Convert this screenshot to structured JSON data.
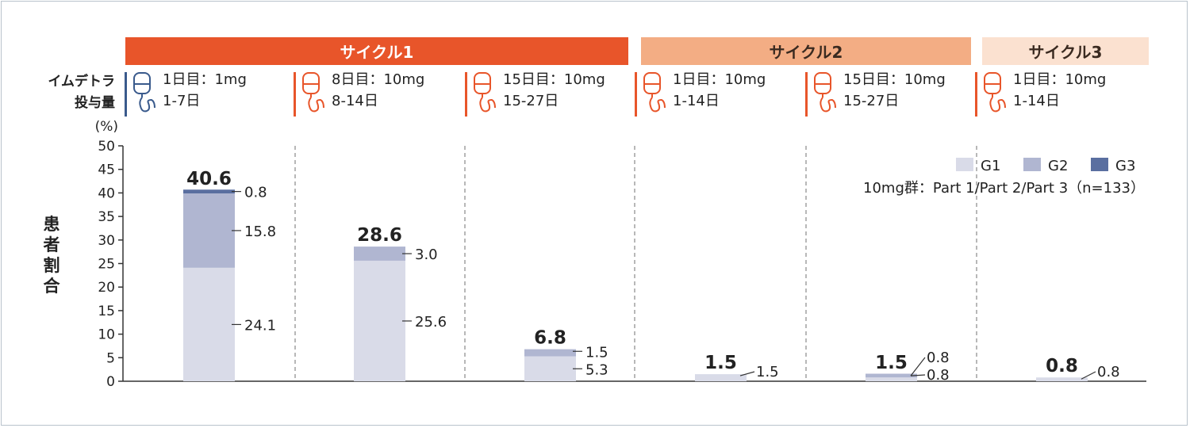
{
  "cycles": [
    {
      "label": "サイクル1",
      "color": "#e8552a",
      "text_color": "#ffffff"
    },
    {
      "label": "サイクル2",
      "color": "#f3ad84",
      "text_color": "#3a2a20"
    },
    {
      "label": "サイクル3",
      "color": "#fbe1d0",
      "text_color": "#3a2a20"
    }
  ],
  "dose_label": {
    "line1": "イムデトラ",
    "line2": "投与量"
  },
  "doses": [
    {
      "line1": "1日目：1mg",
      "line2": "1-7日",
      "color": "#3a5a8c"
    },
    {
      "line1": "8日目：10mg",
      "line2": "8-14日",
      "color": "#e8552a"
    },
    {
      "line1": "15日目：10mg",
      "line2": "15-27日",
      "color": "#e8552a"
    },
    {
      "line1": "1日目：10mg",
      "line2": "1-14日",
      "color": "#e8552a"
    },
    {
      "line1": "15日目：10mg",
      "line2": "15-27日",
      "color": "#e8552a"
    },
    {
      "line1": "1日目：10mg",
      "line2": "1-14日",
      "color": "#e8552a"
    }
  ],
  "icon": "iv-drip-bag-icon",
  "ylabel": "患者割合",
  "chart_data": {
    "type": "bar",
    "stacked": true,
    "y_unit": "(%)",
    "ylim": [
      0,
      50
    ],
    "yticks": [
      0,
      5,
      10,
      15,
      20,
      25,
      30,
      35,
      40,
      45,
      50
    ],
    "grid": false,
    "legend_position": "top-right",
    "note": "10mg群：Part 1/Part 2/Part 3（n=133）",
    "series": [
      {
        "name": "G1",
        "color": "#d9dbe8",
        "values": [
          24.1,
          25.6,
          5.3,
          1.5,
          0.8,
          0.8
        ]
      },
      {
        "name": "G2",
        "color": "#b0b6d1",
        "values": [
          15.8,
          3.0,
          1.5,
          0,
          0.8,
          0
        ]
      },
      {
        "name": "G3",
        "color": "#5a6fa0",
        "values": [
          0.8,
          0,
          0,
          0,
          0,
          0
        ]
      }
    ],
    "totals": [
      40.6,
      28.6,
      6.8,
      1.5,
      1.5,
      0.8
    ],
    "segment_labels": [
      [
        "24.1",
        "15.8",
        "0.8"
      ],
      [
        "25.6",
        "3.0"
      ],
      [
        "5.3",
        "1.5"
      ],
      [
        "1.5"
      ],
      [
        "0.8",
        "0.8"
      ],
      [
        "0.8"
      ]
    ]
  }
}
